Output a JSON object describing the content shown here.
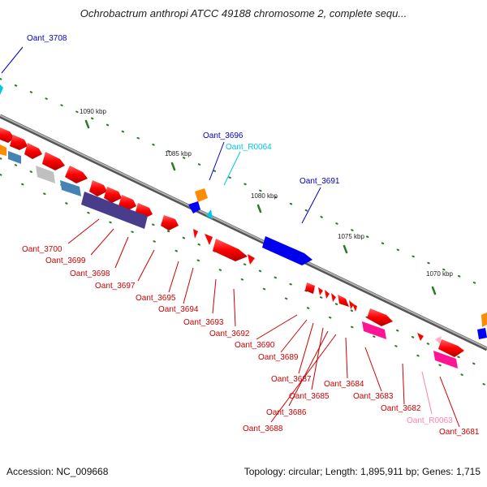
{
  "title": "Ochrobactrum anthropi ATCC 49188 chromosome 2, complete sequ...",
  "accession": "Accession: NC_009668",
  "summary": "Topology: circular; Length: 1,895,911 bp; Genes: 1,715",
  "scale_labels": [
    "1090 kbp",
    "1085 kbp",
    "1080 kbp",
    "1075 kbp",
    "1070 kbp"
  ],
  "colors": {
    "backbone": "#8a8a8a",
    "cds": "#ff0000",
    "cds_label": "#cc0000",
    "rna": "#00c8e6",
    "gene_label_blue": "#0000c0",
    "pink_label": "#ff80b0",
    "tick": "#2a7a2a"
  },
  "gene_labels": {
    "oant_3708": "Oant_3708",
    "oant_3696": "Oant_3696",
    "oant_r0064": "Oant_R0064",
    "oant_3691": "Oant_3691",
    "oant_3700": "Oant_3700",
    "oant_3699": "Oant_3699",
    "oant_3698": "Oant_3698",
    "oant_3697": "Oant_3697",
    "oant_3695": "Oant_3695",
    "oant_3694": "Oant_3694",
    "oant_3693": "Oant_3693",
    "oant_3692": "Oant_3692",
    "oant_3690": "Oant_3690",
    "oant_3689": "Oant_3689",
    "oant_3687": "Oant_3687",
    "oant_3685": "Oant_3685",
    "oant_3686": "Oant_3686",
    "oant_3688": "Oant_3688",
    "oant_3684": "Oant_3684",
    "oant_3683": "Oant_3683",
    "oant_3682": "Oant_3682",
    "oant_r0063": "Oant_R0063",
    "oant_3681": "Oant_3681"
  }
}
